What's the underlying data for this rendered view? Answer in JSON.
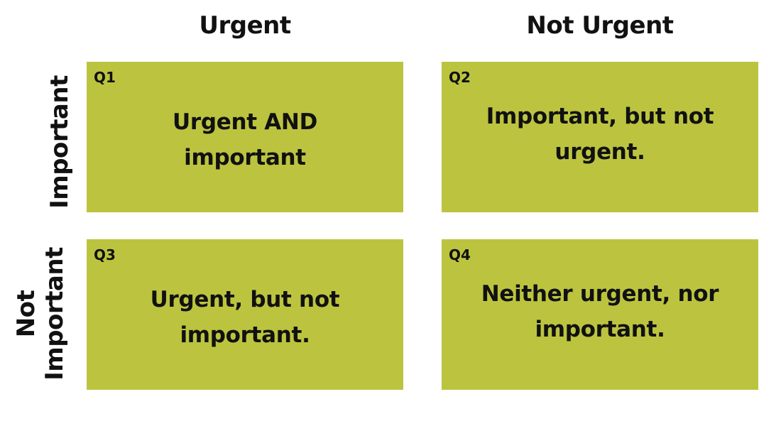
{
  "columns": {
    "urgent": "Urgent",
    "not_urgent": "Not Urgent"
  },
  "rows": {
    "important": "Important",
    "not_important_line1": "Not",
    "not_important_line2": "Important"
  },
  "quadrants": [
    {
      "label": "Q1",
      "line1": "Urgent AND",
      "line2": "important"
    },
    {
      "label": "Q2",
      "line1": "Important, but not",
      "line2": "urgent."
    },
    {
      "label": "Q3",
      "line1": "Urgent, but not",
      "line2": "important."
    },
    {
      "label": "Q4",
      "line1": "Neither urgent, nor",
      "line2": "important."
    }
  ],
  "colors": {
    "quadrant_fill": "#bcc43f",
    "text": "#111111",
    "background": "#ffffff"
  }
}
